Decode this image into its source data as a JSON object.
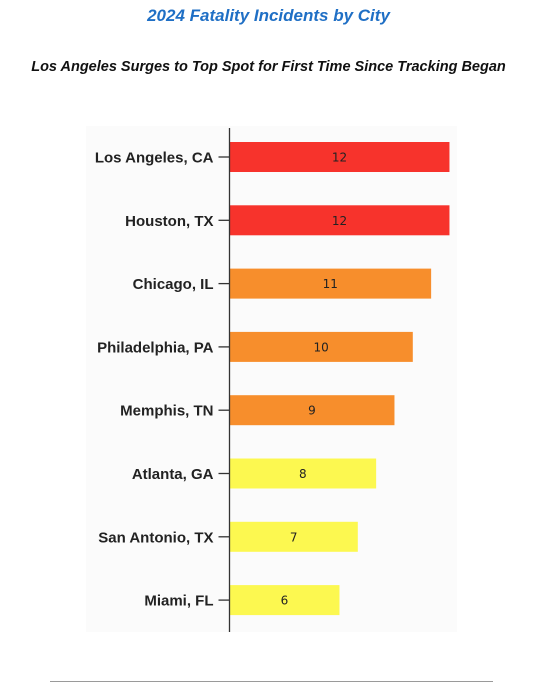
{
  "title": "2024 Fatality Incidents by City",
  "subtitle": "Los Angeles Surges to Top Spot for First Time Since Tracking Began",
  "chart_data": {
    "type": "bar",
    "orientation": "horizontal",
    "title": "2024 Fatality Incidents by City",
    "subtitle": "Los Angeles Surges to Top Spot for First Time Since Tracking Began",
    "categories": [
      "Los Angeles, CA",
      "Houston, TX",
      "Chicago, IL",
      "Philadelphia, PA",
      "Memphis, TN",
      "Atlanta, GA",
      "San Antonio, TX",
      "Miami, FL"
    ],
    "values": [
      12,
      12,
      11,
      10,
      9,
      8,
      7,
      6
    ],
    "colors": [
      "#f7332c",
      "#f7332c",
      "#f78e2c",
      "#f78e2c",
      "#f78e2c",
      "#fcf850",
      "#fcf850",
      "#fcf850"
    ],
    "xlim": [
      0,
      12.5
    ],
    "xlabel": "",
    "ylabel": "",
    "grid": false,
    "legend": "none",
    "data_labels": true
  }
}
